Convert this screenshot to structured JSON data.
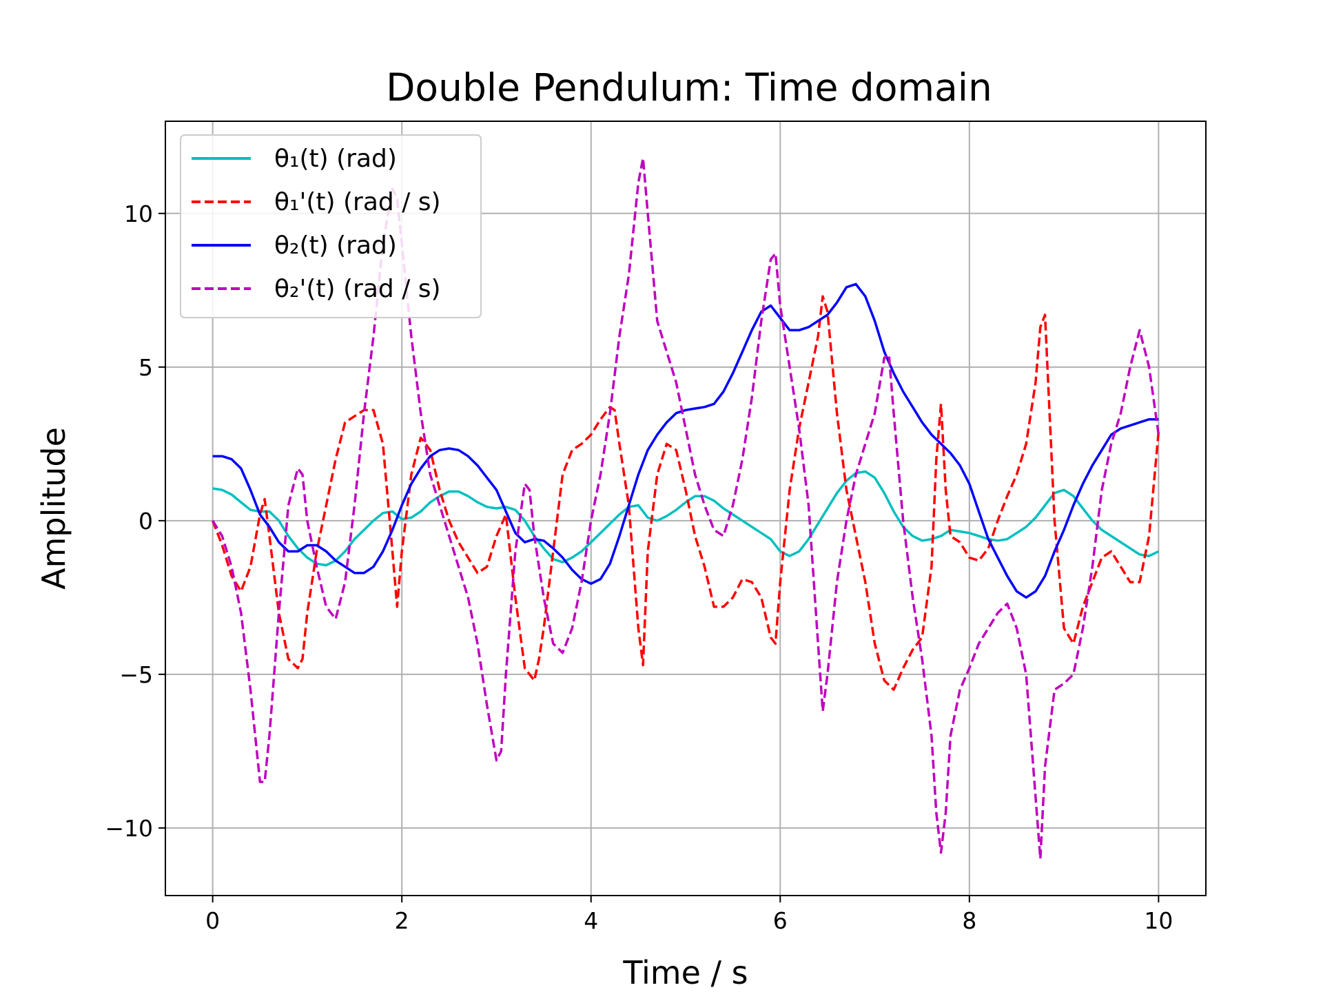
{
  "chart_data": {
    "type": "line",
    "title": "Double Pendulum: Time domain",
    "xlabel": "Time / s",
    "ylabel": "Amplitude",
    "xlim": [
      -0.5,
      10.5
    ],
    "ylim": [
      -12.2,
      13.0
    ],
    "xticks": [
      0,
      2,
      4,
      6,
      8,
      10
    ],
    "xtick_labels": [
      "0",
      "2",
      "4",
      "6",
      "8",
      "10"
    ],
    "yticks": [
      -10,
      -5,
      0,
      5,
      10
    ],
    "ytick_labels": [
      "−10",
      "−5",
      "0",
      "5",
      "10"
    ],
    "grid": true,
    "legend_position": "upper-left",
    "series": [
      {
        "name": "θ₁(t) (rad)",
        "color": "#00bfbf",
        "style": "solid",
        "x": [
          0,
          0.1,
          0.2,
          0.3,
          0.4,
          0.5,
          0.6,
          0.7,
          0.8,
          0.9,
          1.0,
          1.1,
          1.2,
          1.3,
          1.4,
          1.5,
          1.6,
          1.7,
          1.8,
          1.9,
          2.0,
          2.1,
          2.2,
          2.3,
          2.4,
          2.5,
          2.6,
          2.7,
          2.8,
          2.9,
          3.0,
          3.1,
          3.2,
          3.3,
          3.4,
          3.5,
          3.6,
          3.7,
          3.8,
          3.9,
          4.0,
          4.1,
          4.2,
          4.3,
          4.4,
          4.5,
          4.6,
          4.7,
          4.8,
          4.9,
          5.0,
          5.1,
          5.2,
          5.3,
          5.4,
          5.5,
          5.6,
          5.7,
          5.8,
          5.9,
          6.0,
          6.1,
          6.2,
          6.3,
          6.4,
          6.5,
          6.6,
          6.7,
          6.8,
          6.9,
          7.0,
          7.1,
          7.2,
          7.3,
          7.4,
          7.5,
          7.6,
          7.7,
          7.8,
          7.9,
          8.0,
          8.1,
          8.2,
          8.3,
          8.4,
          8.5,
          8.6,
          8.7,
          8.8,
          8.9,
          9.0,
          9.1,
          9.2,
          9.3,
          9.4,
          9.5,
          9.6,
          9.7,
          9.8,
          9.9,
          10.0
        ],
        "values": [
          1.05,
          1.0,
          0.85,
          0.6,
          0.35,
          0.3,
          0.3,
          0.0,
          -0.5,
          -0.9,
          -1.2,
          -1.4,
          -1.45,
          -1.3,
          -1.0,
          -0.6,
          -0.3,
          0.0,
          0.25,
          0.3,
          0.05,
          0.1,
          0.3,
          0.6,
          0.8,
          0.95,
          0.95,
          0.8,
          0.6,
          0.45,
          0.4,
          0.45,
          0.35,
          0.0,
          -0.5,
          -0.9,
          -1.25,
          -1.35,
          -1.2,
          -1.0,
          -0.7,
          -0.4,
          -0.1,
          0.2,
          0.45,
          0.5,
          0.1,
          0.0,
          0.15,
          0.35,
          0.6,
          0.8,
          0.8,
          0.65,
          0.4,
          0.2,
          0.0,
          -0.2,
          -0.4,
          -0.6,
          -1.0,
          -1.15,
          -1.0,
          -0.6,
          -0.1,
          0.4,
          0.9,
          1.3,
          1.55,
          1.6,
          1.4,
          0.9,
          0.3,
          -0.2,
          -0.5,
          -0.65,
          -0.6,
          -0.5,
          -0.3,
          -0.35,
          -0.4,
          -0.5,
          -0.6,
          -0.65,
          -0.6,
          -0.4,
          -0.2,
          0.1,
          0.5,
          0.9,
          1.0,
          0.8,
          0.4,
          0.0,
          -0.3,
          -0.5,
          -0.7,
          -0.9,
          -1.1,
          -1.15,
          -1.0
        ]
      },
      {
        "name": "θ₁'(t) (rad / s)",
        "color": "#ff0000",
        "style": "dashed",
        "x": [
          0,
          0.1,
          0.2,
          0.3,
          0.4,
          0.5,
          0.55,
          0.6,
          0.7,
          0.8,
          0.9,
          0.95,
          1.0,
          1.1,
          1.2,
          1.3,
          1.4,
          1.5,
          1.6,
          1.7,
          1.8,
          1.9,
          1.95,
          2.0,
          2.1,
          2.2,
          2.3,
          2.4,
          2.5,
          2.6,
          2.7,
          2.8,
          2.9,
          3.0,
          3.1,
          3.2,
          3.3,
          3.4,
          3.45,
          3.5,
          3.6,
          3.7,
          3.8,
          3.9,
          4.0,
          4.1,
          4.2,
          4.25,
          4.3,
          4.4,
          4.5,
          4.55,
          4.6,
          4.7,
          4.8,
          4.9,
          5.0,
          5.1,
          5.2,
          5.3,
          5.4,
          5.5,
          5.6,
          5.7,
          5.8,
          5.9,
          5.95,
          6.0,
          6.1,
          6.2,
          6.3,
          6.4,
          6.45,
          6.5,
          6.6,
          6.7,
          6.8,
          6.9,
          7.0,
          7.1,
          7.2,
          7.3,
          7.4,
          7.5,
          7.6,
          7.65,
          7.7,
          7.75,
          7.8,
          7.9,
          8.0,
          8.1,
          8.2,
          8.3,
          8.4,
          8.5,
          8.6,
          8.7,
          8.75,
          8.8,
          8.9,
          9.0,
          9.1,
          9.2,
          9.3,
          9.4,
          9.5,
          9.6,
          9.7,
          9.8,
          9.9,
          10.0
        ],
        "values": [
          0.0,
          -0.8,
          -1.8,
          -2.3,
          -1.5,
          0.2,
          0.7,
          -0.5,
          -3.0,
          -4.5,
          -4.8,
          -4.5,
          -3.0,
          -1.0,
          0.5,
          2.0,
          3.2,
          3.4,
          3.6,
          3.6,
          2.5,
          -1.0,
          -2.8,
          -1.0,
          1.5,
          2.7,
          2.3,
          1.0,
          0.0,
          -0.7,
          -1.2,
          -1.7,
          -1.5,
          -0.5,
          0.2,
          -2.5,
          -4.8,
          -5.2,
          -4.5,
          -3.5,
          -1.0,
          1.5,
          2.3,
          2.5,
          2.8,
          3.3,
          3.7,
          3.6,
          2.5,
          0.5,
          -3.5,
          -4.7,
          -1.0,
          1.5,
          2.5,
          2.3,
          1.0,
          -0.5,
          -1.5,
          -2.8,
          -2.8,
          -2.5,
          -1.9,
          -2.0,
          -2.5,
          -3.8,
          -4.0,
          -2.0,
          1.0,
          3.0,
          4.5,
          6.0,
          7.3,
          6.8,
          3.5,
          1.0,
          -0.5,
          -2.0,
          -4.0,
          -5.2,
          -5.5,
          -4.8,
          -4.2,
          -3.8,
          -1.5,
          2.0,
          3.8,
          1.0,
          -0.5,
          -0.7,
          -1.2,
          -1.3,
          -0.9,
          0.0,
          0.8,
          1.5,
          2.5,
          4.5,
          6.3,
          6.7,
          0.0,
          -3.5,
          -4.0,
          -2.8,
          -2.0,
          -1.2,
          -1.0,
          -1.5,
          -2.0,
          -2.0,
          -0.5,
          2.9
        ]
      },
      {
        "name": "θ₂(t) (rad)",
        "color": "#0000ff",
        "style": "solid",
        "x": [
          0,
          0.1,
          0.2,
          0.3,
          0.4,
          0.5,
          0.6,
          0.7,
          0.8,
          0.9,
          1.0,
          1.1,
          1.2,
          1.3,
          1.4,
          1.5,
          1.6,
          1.7,
          1.8,
          1.9,
          2.0,
          2.1,
          2.2,
          2.3,
          2.4,
          2.5,
          2.6,
          2.7,
          2.8,
          2.9,
          3.0,
          3.1,
          3.2,
          3.3,
          3.4,
          3.5,
          3.6,
          3.7,
          3.8,
          3.9,
          4.0,
          4.1,
          4.2,
          4.3,
          4.4,
          4.5,
          4.6,
          4.7,
          4.8,
          4.9,
          5.0,
          5.1,
          5.2,
          5.3,
          5.4,
          5.5,
          5.6,
          5.7,
          5.8,
          5.9,
          6.0,
          6.1,
          6.2,
          6.3,
          6.4,
          6.5,
          6.6,
          6.7,
          6.8,
          6.9,
          7.0,
          7.1,
          7.2,
          7.3,
          7.4,
          7.5,
          7.6,
          7.7,
          7.8,
          7.9,
          8.0,
          8.1,
          8.2,
          8.3,
          8.4,
          8.5,
          8.6,
          8.7,
          8.8,
          8.9,
          9.0,
          9.1,
          9.2,
          9.3,
          9.4,
          9.5,
          9.6,
          9.7,
          9.8,
          9.9,
          10.0
        ],
        "values": [
          2.1,
          2.1,
          2.0,
          1.7,
          1.0,
          0.2,
          -0.2,
          -0.7,
          -1.0,
          -1.0,
          -0.8,
          -0.8,
          -1.0,
          -1.3,
          -1.5,
          -1.7,
          -1.7,
          -1.5,
          -1.0,
          -0.3,
          0.5,
          1.2,
          1.7,
          2.1,
          2.3,
          2.35,
          2.3,
          2.1,
          1.8,
          1.4,
          1.0,
          0.3,
          -0.4,
          -0.7,
          -0.6,
          -0.65,
          -0.9,
          -1.2,
          -1.6,
          -1.9,
          -2.05,
          -1.9,
          -1.4,
          -0.5,
          0.5,
          1.5,
          2.3,
          2.8,
          3.2,
          3.5,
          3.6,
          3.65,
          3.7,
          3.8,
          4.2,
          4.8,
          5.5,
          6.2,
          6.8,
          7.0,
          6.6,
          6.2,
          6.2,
          6.3,
          6.5,
          6.7,
          7.1,
          7.6,
          7.7,
          7.3,
          6.5,
          5.5,
          4.8,
          4.2,
          3.7,
          3.2,
          2.8,
          2.5,
          2.2,
          1.8,
          1.2,
          0.3,
          -0.6,
          -1.2,
          -1.8,
          -2.3,
          -2.5,
          -2.3,
          -1.8,
          -1.0,
          -0.3,
          0.5,
          1.2,
          1.8,
          2.3,
          2.8,
          3.0,
          3.1,
          3.2,
          3.3,
          3.3
        ]
      },
      {
        "name": "θ₂'(t) (rad / s)",
        "color": "#bf00bf",
        "style": "dashed",
        "x": [
          0,
          0.1,
          0.2,
          0.3,
          0.4,
          0.5,
          0.55,
          0.6,
          0.7,
          0.8,
          0.9,
          0.95,
          1.0,
          1.1,
          1.2,
          1.3,
          1.4,
          1.5,
          1.6,
          1.7,
          1.8,
          1.9,
          1.95,
          2.0,
          2.1,
          2.2,
          2.3,
          2.4,
          2.5,
          2.6,
          2.7,
          2.8,
          2.9,
          3.0,
          3.05,
          3.1,
          3.2,
          3.3,
          3.35,
          3.4,
          3.5,
          3.6,
          3.7,
          3.8,
          3.9,
          4.0,
          4.1,
          4.2,
          4.3,
          4.4,
          4.5,
          4.55,
          4.6,
          4.7,
          4.8,
          4.9,
          5.0,
          5.1,
          5.2,
          5.3,
          5.4,
          5.5,
          5.6,
          5.7,
          5.8,
          5.9,
          5.95,
          6.0,
          6.1,
          6.2,
          6.3,
          6.4,
          6.45,
          6.5,
          6.6,
          6.7,
          6.8,
          6.9,
          7.0,
          7.1,
          7.15,
          7.2,
          7.3,
          7.4,
          7.5,
          7.6,
          7.65,
          7.7,
          7.75,
          7.8,
          7.9,
          8.0,
          8.1,
          8.2,
          8.3,
          8.4,
          8.5,
          8.6,
          8.7,
          8.75,
          8.8,
          8.9,
          9.0,
          9.1,
          9.2,
          9.3,
          9.4,
          9.5,
          9.6,
          9.7,
          9.8,
          9.9,
          10.0
        ],
        "values": [
          0.0,
          -0.5,
          -1.5,
          -3.0,
          -5.5,
          -8.5,
          -8.5,
          -7.0,
          -3.0,
          0.5,
          1.7,
          1.5,
          0.0,
          -1.5,
          -2.8,
          -3.2,
          -2.0,
          0.5,
          3.5,
          6.0,
          9.0,
          10.8,
          10.5,
          9.0,
          6.0,
          3.5,
          1.5,
          0.5,
          -0.5,
          -1.5,
          -2.5,
          -4.0,
          -6.0,
          -7.8,
          -7.5,
          -5.0,
          -1.0,
          1.2,
          1.0,
          -0.5,
          -2.5,
          -4.0,
          -4.3,
          -3.5,
          -2.0,
          0.0,
          1.5,
          3.5,
          6.0,
          8.0,
          11.0,
          11.8,
          10.0,
          6.5,
          5.5,
          4.5,
          3.0,
          1.5,
          0.5,
          -0.3,
          -0.5,
          0.5,
          2.0,
          4.0,
          6.5,
          8.5,
          8.7,
          7.0,
          5.0,
          3.0,
          0.5,
          -4.0,
          -6.2,
          -5.0,
          -2.0,
          0.0,
          1.5,
          2.5,
          3.5,
          5.3,
          5.4,
          3.5,
          0.0,
          -2.5,
          -4.5,
          -7.0,
          -9.5,
          -10.8,
          -9.5,
          -7.0,
          -5.5,
          -4.8,
          -4.0,
          -3.5,
          -3.0,
          -2.7,
          -3.5,
          -5.0,
          -9.0,
          -11.0,
          -8.0,
          -5.5,
          -5.3,
          -5.0,
          -3.5,
          -1.5,
          1.0,
          2.5,
          3.5,
          5.0,
          6.2,
          5.0,
          2.8
        ]
      }
    ]
  }
}
